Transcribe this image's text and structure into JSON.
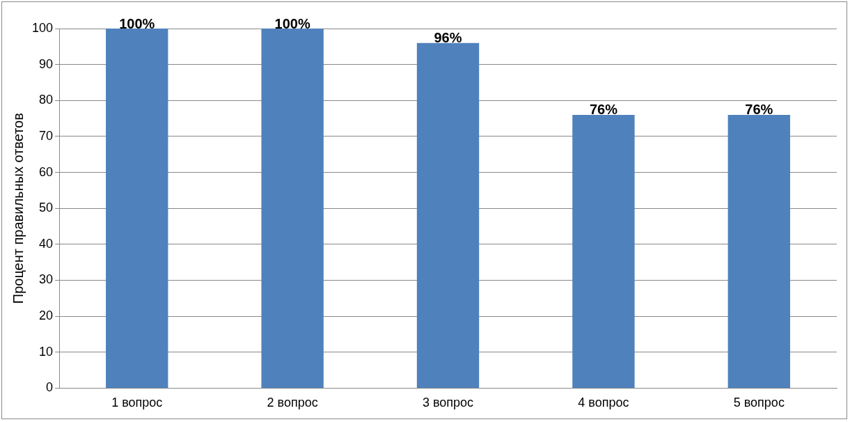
{
  "chart_data": {
    "type": "bar",
    "ylabel": "Процент правильных ответов",
    "categories": [
      "1 вопрос",
      "2 вопрос",
      "3 вопрос",
      "4 вопрос",
      "5 вопрос"
    ],
    "values": [
      100,
      100,
      96,
      76,
      76
    ],
    "color": "#4f81bd",
    "value_labels": [
      "100%",
      "100%",
      "96%",
      "76%",
      "76%"
    ],
    "ylim": [
      0,
      100
    ],
    "yticks": [
      0,
      10,
      20,
      30,
      40,
      50,
      60,
      70,
      80,
      90,
      100
    ],
    "grid": "y",
    "legend": false
  }
}
